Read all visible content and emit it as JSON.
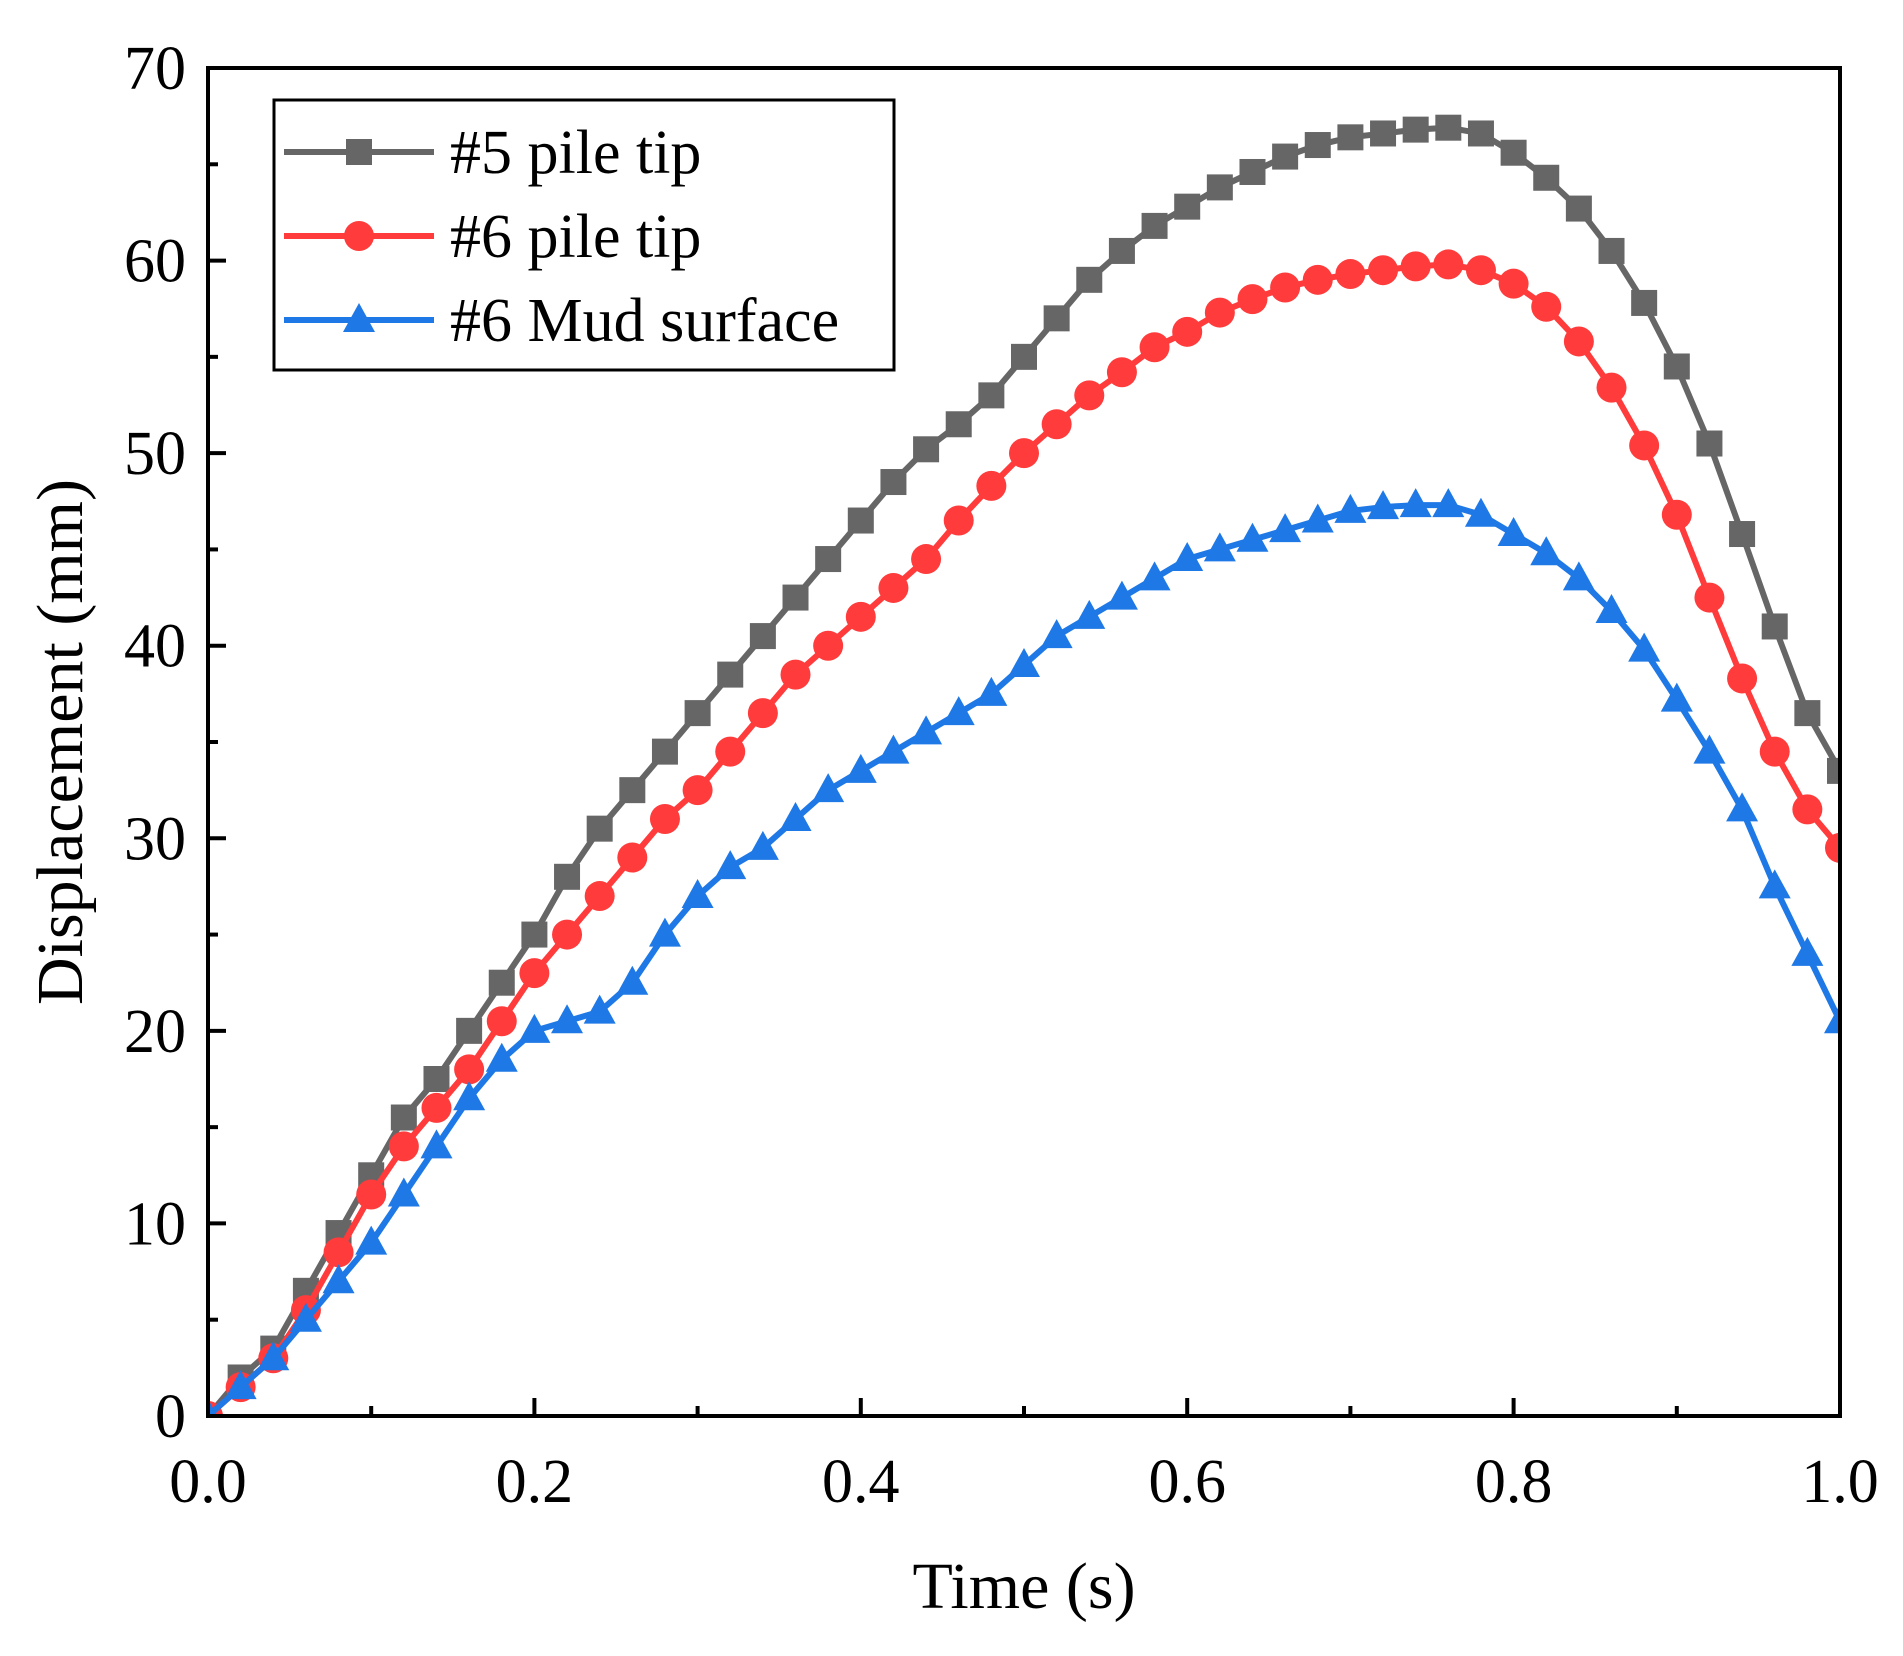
{
  "chart_data": {
    "type": "line",
    "title": "",
    "xlabel": "Time (s)",
    "ylabel": "Displacement (mm)",
    "xlim": [
      0.0,
      1.0
    ],
    "ylim": [
      0,
      70
    ],
    "x_ticks": [
      "0.0",
      "0.2",
      "0.4",
      "0.6",
      "0.8",
      "1.0"
    ],
    "x_tick_values": [
      0.0,
      0.2,
      0.4,
      0.6,
      0.8,
      1.0
    ],
    "y_ticks": [
      "0",
      "10",
      "20",
      "30",
      "40",
      "50",
      "60",
      "70"
    ],
    "y_tick_values": [
      0,
      10,
      20,
      30,
      40,
      50,
      60,
      70
    ],
    "grid": false,
    "legend_position": "top-left",
    "series": [
      {
        "name": "#5 pile tip",
        "color": "#666666",
        "marker": "square",
        "x": [
          0.0,
          0.02,
          0.04,
          0.06,
          0.08,
          0.1,
          0.12,
          0.14,
          0.16,
          0.18,
          0.2,
          0.22,
          0.24,
          0.26,
          0.28,
          0.3,
          0.32,
          0.34,
          0.36,
          0.38,
          0.4,
          0.42,
          0.44,
          0.46,
          0.48,
          0.5,
          0.52,
          0.54,
          0.56,
          0.58,
          0.6,
          0.62,
          0.64,
          0.66,
          0.68,
          0.7,
          0.72,
          0.74,
          0.76,
          0.78,
          0.8,
          0.82,
          0.84,
          0.86,
          0.88,
          0.9,
          0.92,
          0.94,
          0.96,
          0.98,
          1.0
        ],
        "y": [
          0,
          2,
          3.5,
          6.5,
          9.5,
          12.5,
          15.5,
          17.5,
          20,
          22.5,
          25,
          28,
          30.5,
          32.5,
          34.5,
          36.5,
          38.5,
          40.5,
          42.5,
          44.5,
          46.5,
          48.5,
          50.2,
          51.5,
          53,
          55,
          57,
          59,
          60.5,
          61.8,
          62.8,
          63.8,
          64.6,
          65.4,
          66,
          66.4,
          66.6,
          66.8,
          66.9,
          66.6,
          65.6,
          64.3,
          62.7,
          60.5,
          57.8,
          54.5,
          50.5,
          45.8,
          41,
          36.5,
          33.5
        ]
      },
      {
        "name": "#6 pile tip",
        "color": "#ff3b3b",
        "marker": "circle",
        "x": [
          0.0,
          0.02,
          0.04,
          0.06,
          0.08,
          0.1,
          0.12,
          0.14,
          0.16,
          0.18,
          0.2,
          0.22,
          0.24,
          0.26,
          0.28,
          0.3,
          0.32,
          0.34,
          0.36,
          0.38,
          0.4,
          0.42,
          0.44,
          0.46,
          0.48,
          0.5,
          0.52,
          0.54,
          0.56,
          0.58,
          0.6,
          0.62,
          0.64,
          0.66,
          0.68,
          0.7,
          0.72,
          0.74,
          0.76,
          0.78,
          0.8,
          0.82,
          0.84,
          0.86,
          0.88,
          0.9,
          0.92,
          0.94,
          0.96,
          0.98,
          1.0
        ],
        "y": [
          0,
          1.5,
          3,
          5.5,
          8.5,
          11.5,
          14,
          16,
          18,
          20.5,
          23,
          25,
          27,
          29,
          31,
          32.5,
          34.5,
          36.5,
          38.5,
          40,
          41.5,
          43,
          44.5,
          46.5,
          48.3,
          50,
          51.5,
          53,
          54.2,
          55.5,
          56.3,
          57.3,
          58,
          58.6,
          59,
          59.3,
          59.5,
          59.7,
          59.8,
          59.5,
          58.8,
          57.6,
          55.8,
          53.4,
          50.4,
          46.8,
          42.5,
          38.3,
          34.5,
          31.5,
          29.5
        ]
      },
      {
        "name": "#6 Mud surface",
        "color": "#1e78e6",
        "marker": "triangle",
        "x": [
          0.0,
          0.02,
          0.04,
          0.06,
          0.08,
          0.1,
          0.12,
          0.14,
          0.16,
          0.18,
          0.2,
          0.22,
          0.24,
          0.26,
          0.28,
          0.3,
          0.32,
          0.34,
          0.36,
          0.38,
          0.4,
          0.42,
          0.44,
          0.46,
          0.48,
          0.5,
          0.52,
          0.54,
          0.56,
          0.58,
          0.6,
          0.62,
          0.64,
          0.66,
          0.68,
          0.7,
          0.72,
          0.74,
          0.76,
          0.78,
          0.8,
          0.82,
          0.84,
          0.86,
          0.88,
          0.9,
          0.92,
          0.94,
          0.96,
          0.98,
          1.0
        ],
        "y": [
          0,
          1.5,
          3,
          5,
          7,
          9,
          11.5,
          14,
          16.5,
          18.5,
          20,
          20.5,
          21,
          22.5,
          25,
          27,
          28.5,
          29.5,
          31,
          32.5,
          33.5,
          34.5,
          35.5,
          36.5,
          37.5,
          39,
          40.5,
          41.5,
          42.5,
          43.5,
          44.5,
          45,
          45.5,
          46,
          46.5,
          47,
          47.2,
          47.3,
          47.3,
          46.8,
          45.8,
          44.8,
          43.5,
          41.8,
          39.8,
          37.2,
          34.5,
          31.5,
          27.5,
          24,
          20.5
        ]
      }
    ]
  }
}
